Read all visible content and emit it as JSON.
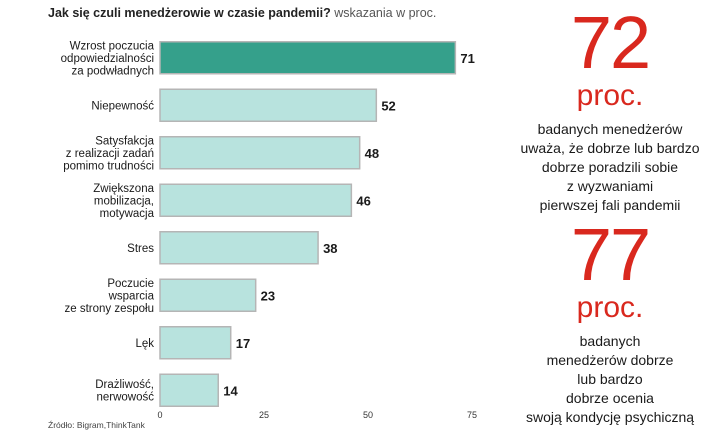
{
  "title": {
    "main": "Jak się czuli menedżerowie w czasie pandemii?",
    "sub": "wskazania w proc."
  },
  "source": "Źródło: Bigram,ThinkTank",
  "colors": {
    "highlight_bar": "#35a08b",
    "bar": "#b8e3de",
    "bar_border": "#b5b5b5",
    "accent": "#d9281e"
  },
  "chart_data": {
    "type": "bar",
    "orientation": "horizontal",
    "categories": [
      "Wzrost poczucia odpowiedzialności za podwładnych",
      "Niepewność",
      "Satysfakcja z realizacji zadań pomimo trudności",
      "Zwiększona mobilizacja, motywacja",
      "Stres",
      "Poczucie wsparcia ze strony zespołu",
      "Lęk",
      "Drażliwość, nerwowość"
    ],
    "category_lines": [
      [
        "Wzrost poczucia",
        "odpowiedzialności",
        "za podwładnych"
      ],
      [
        "Niepewność"
      ],
      [
        "Satysfakcja",
        "z realizacji zadań",
        "pomimo trudności"
      ],
      [
        "Zwiększona",
        "mobilizacja,",
        "motywacja"
      ],
      [
        "Stres"
      ],
      [
        "Poczucie",
        "wsparcia",
        "ze strony zespołu"
      ],
      [
        "Lęk"
      ],
      [
        "Drażliwość,",
        "nerwowość"
      ]
    ],
    "values": [
      71,
      52,
      48,
      46,
      38,
      23,
      17,
      14
    ],
    "highlight_index": 0,
    "xlim": [
      0,
      75
    ],
    "xticks": [
      0,
      25,
      50,
      75
    ],
    "grid": false
  },
  "stats": [
    {
      "value": "72",
      "unit": "proc.",
      "lines": [
        "badanych menedżerów",
        "uważa, że dobrze lub bardzo",
        "dobrze poradzili sobie",
        "z wyzwaniami",
        "pierwszej fali pandemii"
      ]
    },
    {
      "value": "77",
      "unit": "proc.",
      "lines": [
        "badanych",
        "menedżerów dobrze",
        "lub bardzo",
        "dobrze ocenia",
        "swoją kondycję psychiczną"
      ]
    }
  ]
}
